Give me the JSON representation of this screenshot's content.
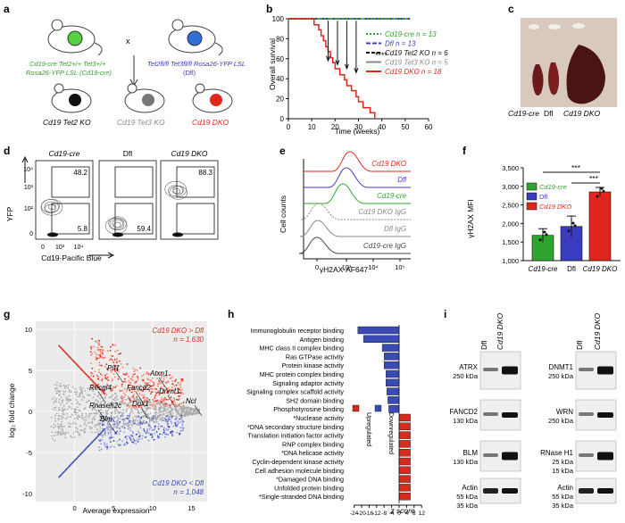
{
  "colors": {
    "green": "#2ea52e",
    "blue": "#3b3bbf",
    "red": "#e0261c",
    "black": "#111111",
    "gray": "#8a8a8a",
    "up": "#d62b1f",
    "down": "#3a4bb5",
    "salmon": "#ff7a5c",
    "periwinkle": "#8c95e6"
  },
  "panel_labels": {
    "a": "a",
    "b": "b",
    "c": "c",
    "d": "d",
    "e": "e",
    "f": "f",
    "g": "g",
    "h": "h",
    "i": "i"
  },
  "panel_a": {
    "cross_symbol": "x",
    "mouse1_line1": "Cd19-cre Tet2+/+ Tet3+/+",
    "mouse1_line2": "Rosa26-YFP LSL (Cd19-cre)",
    "mouse2_line1": "Tet2fl/fl Tet3fl/fl Rosa26-YFP LSL",
    "mouse2_line2": "(Dfl)",
    "off1": "Cd19 Tet2 KO",
    "off2": "Cd19 Tet3 KO",
    "off3": "Cd19 DKO"
  },
  "panel_b": {
    "ylabel": "Overall survival",
    "xlabel": "Time (weeks)",
    "significance": "****",
    "yticks": [
      "0",
      "20",
      "40",
      "60",
      "80",
      "100"
    ],
    "xticks": [
      "0",
      "10",
      "20",
      "30",
      "40",
      "50",
      "60"
    ],
    "legend": [
      {
        "label": "Cd19-cre n = 13",
        "color": "#2ea52e"
      },
      {
        "label": "Dfl n = 13",
        "color": "#3b3bbf"
      },
      {
        "label": "Cd19 Tet2 KO n = 6",
        "color": "#111111"
      },
      {
        "label": "Cd19 Tet3 KO n = 5",
        "color": "#8a8a8a"
      },
      {
        "label": "Cd19 DKO n = 18",
        "color": "#e0261c"
      }
    ]
  },
  "panel_c": {
    "label_left": "Cd19-cre",
    "label_mid": "Dfl",
    "label_right": "Cd19 DKO"
  },
  "panel_d": {
    "titles": [
      "Cd19-cre",
      "Dfl",
      "Cd19 DKO"
    ],
    "gate_top": [
      "48.2",
      "",
      "88.3"
    ],
    "gate_bottom": [
      "5.8",
      "59.4",
      ""
    ],
    "ylabel": "YFP",
    "xlabel": "Cd19-Pacific Blue",
    "yticks": [
      "10⁴",
      "10³",
      "10²",
      "0"
    ],
    "xticks": [
      "0",
      "10³",
      "10⁴"
    ]
  },
  "panel_e": {
    "labels": [
      "Cd19 DKO",
      "Dfl",
      "Cd19-cre",
      "Cd19 DKO IgG",
      "Dfl IgG",
      "Cd19-cre IgG"
    ],
    "ylabel": "Cell counts",
    "xlabel": "γH2AX-AF647",
    "xticks": [
      "0",
      "10³",
      "10⁴",
      "10⁵"
    ]
  },
  "panel_f": {
    "ylabel": "γH2AX MFI",
    "yticks": [
      "1,000",
      "1,500",
      "2,000",
      "2,500",
      "3,000",
      "3,500"
    ],
    "sig1": "***",
    "sig2": "***",
    "legend": [
      "Cd19-cre",
      "Dfl",
      "Cd19 DKO"
    ],
    "xlabels": [
      "Cd19-cre",
      "Dfl",
      "Cd19 DKO"
    ]
  },
  "panel_g": {
    "ylabel": "log₂ fold change",
    "xlabel": "Average expression",
    "up_label1": "Cd19 DKO > Dfl",
    "up_label2": "n = 1,630",
    "down_label1": "Cd19 DKO < Dfl",
    "down_label2": "n = 1,048",
    "genes": [
      "Pif1",
      "Recql4",
      "Fancd2",
      "Atxn1",
      "Dnmt1",
      "Ncl",
      "Rnaseh2c",
      "Dux1",
      "Blm"
    ],
    "yticks": [
      "10",
      "5",
      "0",
      "-5",
      "-10"
    ],
    "xticks": [
      "0",
      "5",
      "10",
      "15"
    ]
  },
  "panel_h": {
    "xlabel": "z score",
    "legend_up": "Upregulated",
    "legend_down": "Downregulated",
    "xticks": [
      "-24",
      "-20",
      "-16",
      "-12",
      "-8",
      "-4",
      "0",
      "4",
      "8",
      "12"
    ],
    "terms": [
      "Immunoglobulin receptor binding",
      "Antigen binding",
      "MHC class II complex binding",
      "Ras GTPase activity",
      "Protein kinase activity",
      "MHC protein complex binding",
      "Signaling adaptor activity",
      "Signaling complex scaffold activity",
      "SH2 domain binding",
      "Phosphotyrosine binding",
      "*Nuclease activity",
      "*DNA secondary structure binding",
      "Translation initiation factor activity",
      "RNP complex binding",
      "*DNA helicase activity",
      "Cyclin-dependent kinase activity",
      "Cell adhesion molecule binding",
      "*Damaged DNA binding",
      "Unfolded protein binding",
      "*Single-stranded DNA binding"
    ],
    "zscores": [
      -22,
      -19,
      -9,
      -8,
      -8,
      -7,
      -7,
      -6.5,
      -6,
      -5.5,
      6,
      6,
      6,
      6,
      6,
      6,
      6,
      6,
      6,
      6
    ]
  },
  "panel_i": {
    "col1": "Dfl",
    "col2": "Cd19 DKO",
    "left_blots": [
      {
        "name": "ATRX",
        "kda": "250 kDa"
      },
      {
        "name": "FANCD2",
        "kda": "130 kDa"
      },
      {
        "name": "BLM",
        "kda": "130 kDa"
      },
      {
        "name": "Actin",
        "kda": "55 kDa",
        "kda2": "35 kDa"
      }
    ],
    "right_blots": [
      {
        "name": "DNMT1",
        "kda": "250 kDa"
      },
      {
        "name": "WRN",
        "kda": "250 kDa"
      },
      {
        "name": "RNase H1",
        "kda": "25 kDa",
        "kda2": "15 kDa"
      },
      {
        "name": "Actin",
        "kda": "55 kDa",
        "kda2": "35 kDa"
      }
    ]
  }
}
